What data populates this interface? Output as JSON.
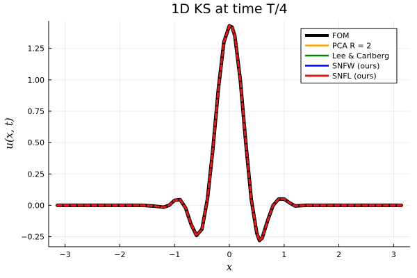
{
  "chart_data": {
    "type": "line",
    "title": "1D KS at time T/4",
    "xlabel": "x",
    "ylabel": "u(x, t)",
    "xlim": [
      -3.3,
      3.3
    ],
    "ylim": [
      -0.33,
      1.47
    ],
    "xticks": [
      -3,
      -2,
      -1,
      0,
      1,
      2,
      3
    ],
    "xtick_labels": [
      "−3",
      "−2",
      "−1",
      "0",
      "1",
      "2",
      "3"
    ],
    "yticks": [
      -0.25,
      0.0,
      0.25,
      0.5,
      0.75,
      1.0,
      1.25
    ],
    "ytick_labels": [
      "−0.25",
      "0.00",
      "0.25",
      "0.50",
      "0.75",
      "1.00",
      "1.25"
    ],
    "grid": true,
    "legend_position": "top-right",
    "x": [
      -3.14,
      -2.8,
      -2.4,
      -2.0,
      -1.6,
      -1.4,
      -1.2,
      -1.1,
      -1.0,
      -0.9,
      -0.8,
      -0.7,
      -0.6,
      -0.5,
      -0.4,
      -0.3,
      -0.2,
      -0.1,
      0.0,
      0.05,
      0.1,
      0.2,
      0.3,
      0.4,
      0.5,
      0.55,
      0.6,
      0.7,
      0.8,
      0.9,
      1.0,
      1.1,
      1.2,
      1.4,
      1.6,
      2.0,
      2.4,
      2.8,
      3.14
    ],
    "series": [
      {
        "name": "FOM",
        "color": "#000000",
        "style": "solid",
        "width": 5,
        "values": [
          0.0,
          0.0,
          0.0,
          0.0,
          0.0,
          -0.005,
          -0.015,
          -0.0,
          0.04,
          0.045,
          -0.02,
          -0.15,
          -0.24,
          -0.19,
          0.05,
          0.45,
          0.93,
          1.3,
          1.43,
          1.42,
          1.35,
          1.0,
          0.5,
          0.05,
          -0.22,
          -0.28,
          -0.26,
          -0.12,
          0.0,
          0.05,
          0.05,
          0.02,
          -0.005,
          0.0,
          0.0,
          0.0,
          0.0,
          0.0,
          0.0
        ]
      },
      {
        "name": "PCA R = 2",
        "color": "#FFA500",
        "style": "dashed",
        "width": 2.5,
        "values": [
          0.0,
          0.0,
          0.0,
          0.0,
          0.0,
          -0.005,
          -0.015,
          -0.0,
          0.04,
          0.045,
          -0.02,
          -0.15,
          -0.24,
          -0.19,
          0.05,
          0.45,
          0.93,
          1.3,
          1.43,
          1.42,
          1.35,
          1.0,
          0.5,
          0.05,
          -0.22,
          -0.28,
          -0.26,
          -0.12,
          0.0,
          0.05,
          0.05,
          0.02,
          -0.005,
          0.0,
          0.0,
          0.0,
          0.0,
          0.0,
          0.0
        ]
      },
      {
        "name": "Lee & Carlberg",
        "color": "#008000",
        "style": "dashed",
        "width": 2.5,
        "values": [
          0.0,
          0.0,
          0.0,
          0.0,
          0.0,
          -0.005,
          -0.015,
          -0.0,
          0.04,
          0.045,
          -0.02,
          -0.15,
          -0.24,
          -0.19,
          0.05,
          0.45,
          0.93,
          1.3,
          1.43,
          1.42,
          1.35,
          1.0,
          0.5,
          0.05,
          -0.22,
          -0.28,
          -0.26,
          -0.12,
          0.0,
          0.05,
          0.05,
          0.02,
          -0.005,
          0.0,
          0.0,
          0.0,
          0.0,
          0.0,
          0.0
        ]
      },
      {
        "name": "SNFW (ours)",
        "color": "#0000FF",
        "style": "dashed",
        "width": 2.5,
        "values": [
          0.0,
          0.0,
          0.0,
          0.0,
          0.0,
          -0.005,
          -0.015,
          -0.0,
          0.04,
          0.045,
          -0.02,
          -0.15,
          -0.24,
          -0.19,
          0.05,
          0.45,
          0.93,
          1.3,
          1.43,
          1.42,
          1.35,
          1.0,
          0.5,
          0.05,
          -0.22,
          -0.28,
          -0.26,
          -0.12,
          0.0,
          0.05,
          0.05,
          0.02,
          -0.005,
          0.0,
          0.0,
          0.0,
          0.0,
          0.0,
          0.0
        ]
      },
      {
        "name": "SNFL (ours)",
        "color": "#E31A1C",
        "style": "dashed",
        "width": 3,
        "values": [
          0.0,
          0.0,
          0.0,
          0.0,
          0.0,
          -0.005,
          -0.015,
          -0.0,
          0.04,
          0.045,
          -0.02,
          -0.15,
          -0.24,
          -0.19,
          0.05,
          0.45,
          0.93,
          1.3,
          1.43,
          1.42,
          1.35,
          1.0,
          0.5,
          0.05,
          -0.22,
          -0.28,
          -0.26,
          -0.12,
          0.0,
          0.05,
          0.05,
          0.02,
          -0.005,
          0.0,
          0.0,
          0.0,
          0.0,
          0.0,
          0.0
        ]
      }
    ]
  }
}
